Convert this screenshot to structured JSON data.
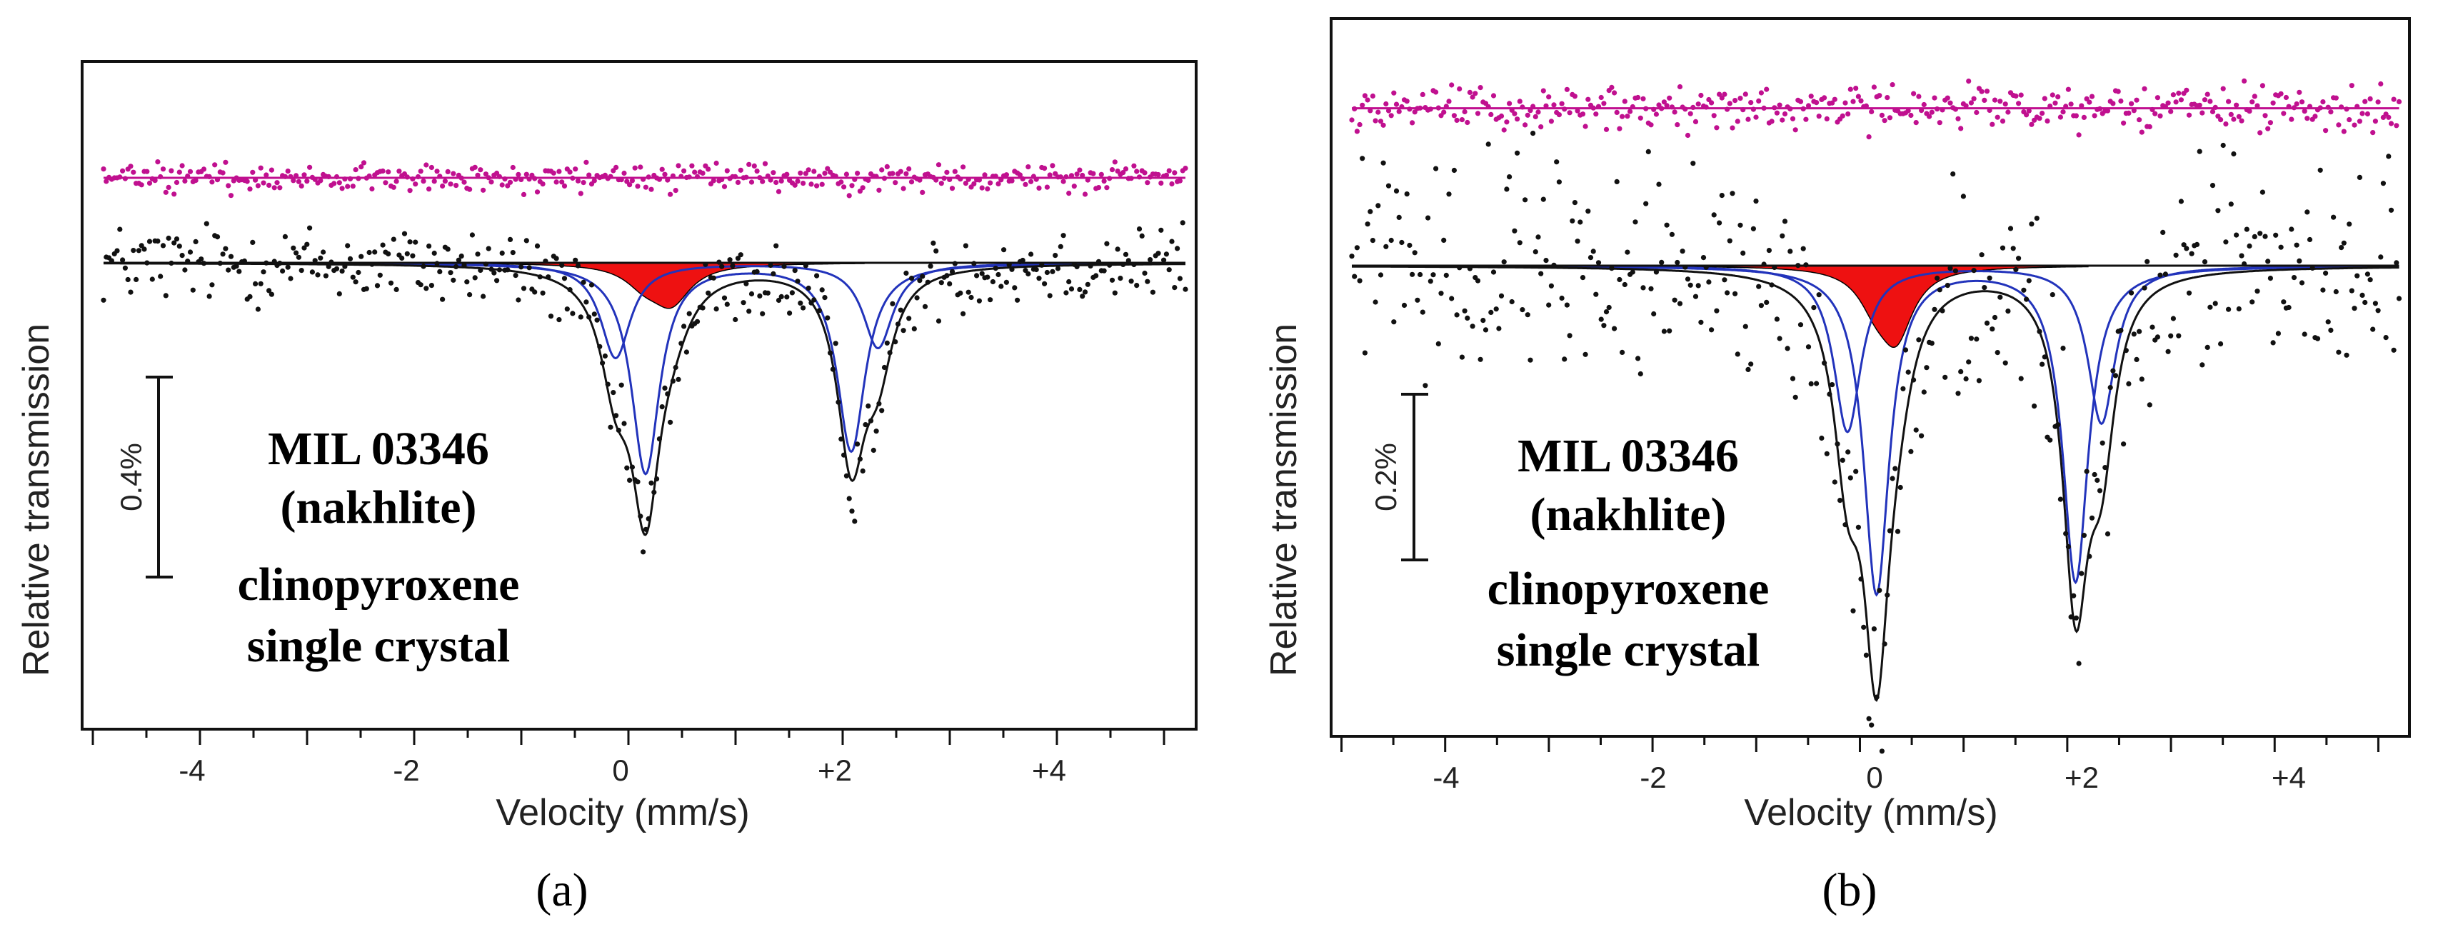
{
  "colors": {
    "data_points": "#111111",
    "residual": "#c0108f",
    "total_fit": "#111111",
    "component_doublet": "#2233bb",
    "component_ferric": "#ee1111"
  },
  "chart_data": [
    {
      "type": "scatter",
      "panel_label": "(a)",
      "xlabel": "Velocity (mm/s)",
      "ylabel": "Relative transmission",
      "xlim": [
        -5.1,
        5.3
      ],
      "ylim": [
        -0.5,
        0.5
      ],
      "x_tick_labels": [
        "-4",
        "-2",
        "0",
        "+2",
        "+4"
      ],
      "annotation_lines": [
        "MIL 03346",
        "(nakhlite)",
        "clinopyroxene",
        "single crystal"
      ],
      "scale_bar_label": "0.4%",
      "scale_bar_value": 0.4,
      "baseline": 0,
      "noise_amplitude": 0.04,
      "residual_level": 0.17,
      "residual_noise": 0.014,
      "fit_components": [
        {
          "name": "Fe2+ doublet 1",
          "color": "component_doublet",
          "filled": false,
          "positions": [
            0.16,
            2.08
          ],
          "depths": [
            -0.42,
            -0.375
          ],
          "hwhm": 0.16
        },
        {
          "name": "Fe2+ doublet 2",
          "color": "component_doublet",
          "filled": false,
          "positions": [
            -0.12,
            2.33
          ],
          "depths": [
            -0.19,
            -0.17
          ],
          "hwhm": 0.17
        },
        {
          "name": "Fe3+ doublet",
          "color": "component_ferric",
          "filled": true,
          "positions": [
            0.15,
            0.4
          ],
          "depths": [
            -0.035,
            -0.075
          ],
          "hwhm": 0.22
        }
      ]
    },
    {
      "type": "scatter",
      "panel_label": "(b)",
      "xlabel": "Velocity (mm/s)",
      "ylabel": "Relative transmission",
      "xlim": [
        -5.1,
        5.3
      ],
      "ylim": [
        -0.5,
        0.5
      ],
      "x_tick_labels": [
        "-4",
        "-2",
        "0",
        "+2",
        "+4"
      ],
      "annotation_lines": [
        "MIL 03346",
        "(nakhlite)",
        "clinopyroxene",
        "single crystal"
      ],
      "scale_bar_label": "0.2%",
      "scale_bar_value": 0.2,
      "baseline": 0,
      "noise_amplitude": 0.06,
      "residual_level": 0.19,
      "residual_noise": 0.013,
      "fit_components": [
        {
          "name": "Fe2+ doublet 1",
          "color": "component_doublet",
          "filled": false,
          "positions": [
            0.16,
            2.08
          ],
          "depths": [
            -0.395,
            -0.38
          ],
          "hwhm": 0.15
        },
        {
          "name": "Fe2+ doublet 2",
          "color": "component_doublet",
          "filled": false,
          "positions": [
            -0.12,
            2.33
          ],
          "depths": [
            -0.2,
            -0.19
          ],
          "hwhm": 0.16
        },
        {
          "name": "Fe3+ doublet",
          "color": "component_ferric",
          "filled": true,
          "positions": [
            0.15,
            0.35
          ],
          "depths": [
            -0.035,
            -0.08
          ],
          "hwhm": 0.2
        }
      ]
    }
  ]
}
